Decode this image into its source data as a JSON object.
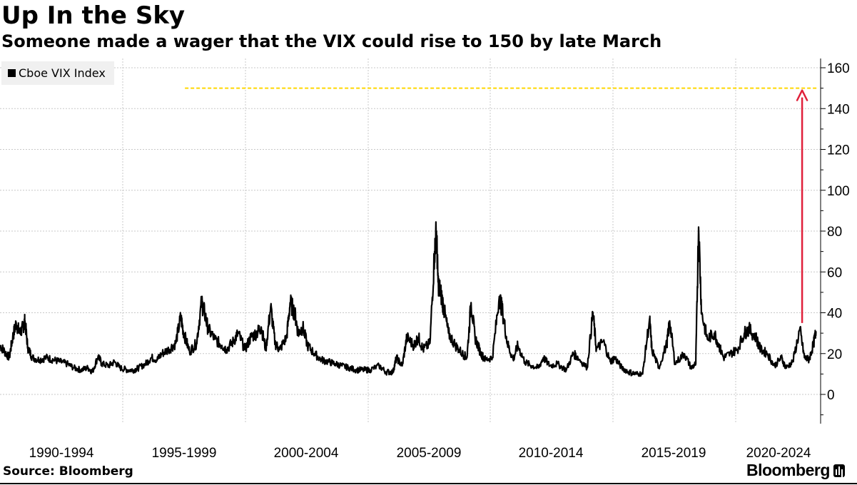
{
  "chart_data": {
    "type": "line",
    "title": "Up In the Sky",
    "subtitle": "Someone made a wager that the VIX could rise to 150 by late March",
    "source": "Source: Bloomberg",
    "brand": "Bloomberg",
    "legend": {
      "placement": "top-left"
    },
    "x_categories": [
      "1990-1994",
      "1995-1999",
      "2000-2004",
      "2005-2009",
      "2010-2014",
      "2015-2019",
      "2020-2024"
    ],
    "y_ticks": [
      0,
      20,
      40,
      60,
      80,
      100,
      120,
      140,
      160
    ],
    "ylim": [
      -15,
      165
    ],
    "xlim": [
      1990.0,
      2025.5
    ],
    "grid": true,
    "series": [
      {
        "name": "Cboe VIX Index",
        "color": "#000000",
        "points": [
          [
            1990.0,
            24
          ],
          [
            1990.2,
            21
          ],
          [
            1990.4,
            18
          ],
          [
            1990.55,
            28
          ],
          [
            1990.7,
            35
          ],
          [
            1990.85,
            30
          ],
          [
            1991.0,
            33
          ],
          [
            1991.08,
            36
          ],
          [
            1991.2,
            23
          ],
          [
            1991.4,
            18
          ],
          [
            1991.7,
            17
          ],
          [
            1992.0,
            18
          ],
          [
            1992.3,
            17
          ],
          [
            1992.6,
            16
          ],
          [
            1992.9,
            15
          ],
          [
            1993.2,
            13
          ],
          [
            1993.5,
            12
          ],
          [
            1993.8,
            13
          ],
          [
            1994.0,
            11
          ],
          [
            1994.25,
            19
          ],
          [
            1994.4,
            15
          ],
          [
            1994.7,
            14
          ],
          [
            1994.95,
            16
          ],
          [
            1995.2,
            13
          ],
          [
            1995.5,
            12
          ],
          [
            1995.8,
            12
          ],
          [
            1996.0,
            13
          ],
          [
            1996.3,
            15
          ],
          [
            1996.55,
            18
          ],
          [
            1996.8,
            17
          ],
          [
            1997.0,
            20
          ],
          [
            1997.3,
            22
          ],
          [
            1997.6,
            25
          ],
          [
            1997.82,
            38
          ],
          [
            1997.95,
            30
          ],
          [
            1998.2,
            21
          ],
          [
            1998.5,
            25
          ],
          [
            1998.72,
            45
          ],
          [
            1998.85,
            40
          ],
          [
            1999.0,
            32
          ],
          [
            1999.3,
            27
          ],
          [
            1999.6,
            24
          ],
          [
            1999.8,
            22
          ],
          [
            2000.1,
            26
          ],
          [
            2000.3,
            30
          ],
          [
            2000.6,
            22
          ],
          [
            2000.85,
            28
          ],
          [
            2001.1,
            30
          ],
          [
            2001.3,
            33
          ],
          [
            2001.5,
            22
          ],
          [
            2001.71,
            43
          ],
          [
            2001.9,
            25
          ],
          [
            2002.1,
            22
          ],
          [
            2002.4,
            28
          ],
          [
            2002.55,
            45
          ],
          [
            2002.75,
            40
          ],
          [
            2002.9,
            30
          ],
          [
            2003.1,
            33
          ],
          [
            2003.3,
            24
          ],
          [
            2003.6,
            20
          ],
          [
            2003.9,
            17
          ],
          [
            2004.2,
            16
          ],
          [
            2004.5,
            15
          ],
          [
            2004.8,
            14
          ],
          [
            2005.1,
            13
          ],
          [
            2005.4,
            12
          ],
          [
            2005.7,
            12
          ],
          [
            2006.0,
            12
          ],
          [
            2006.4,
            14
          ],
          [
            2006.7,
            11
          ],
          [
            2007.0,
            11
          ],
          [
            2007.15,
            18
          ],
          [
            2007.4,
            14
          ],
          [
            2007.6,
            28
          ],
          [
            2007.9,
            24
          ],
          [
            2008.1,
            28
          ],
          [
            2008.3,
            22
          ],
          [
            2008.6,
            25
          ],
          [
            2008.8,
            70
          ],
          [
            2008.88,
            80
          ],
          [
            2008.95,
            55
          ],
          [
            2009.1,
            48
          ],
          [
            2009.2,
            42
          ],
          [
            2009.4,
            30
          ],
          [
            2009.7,
            24
          ],
          [
            2010.0,
            20
          ],
          [
            2010.2,
            18
          ],
          [
            2010.38,
            45
          ],
          [
            2010.55,
            28
          ],
          [
            2010.8,
            20
          ],
          [
            2011.0,
            17
          ],
          [
            2011.3,
            18
          ],
          [
            2011.6,
            48
          ],
          [
            2011.75,
            40
          ],
          [
            2011.95,
            25
          ],
          [
            2012.2,
            17
          ],
          [
            2012.4,
            24
          ],
          [
            2012.7,
            16
          ],
          [
            2013.0,
            14
          ],
          [
            2013.3,
            13
          ],
          [
            2013.5,
            18
          ],
          [
            2013.8,
            14
          ],
          [
            2014.1,
            15
          ],
          [
            2014.5,
            12
          ],
          [
            2014.8,
            20
          ],
          [
            2015.0,
            18
          ],
          [
            2015.4,
            13
          ],
          [
            2015.65,
            40
          ],
          [
            2015.8,
            22
          ],
          [
            2016.1,
            26
          ],
          [
            2016.4,
            16
          ],
          [
            2016.6,
            18
          ],
          [
            2016.9,
            13
          ],
          [
            2017.2,
            11
          ],
          [
            2017.5,
            10
          ],
          [
            2017.8,
            10
          ],
          [
            2018.1,
            37
          ],
          [
            2018.2,
            22
          ],
          [
            2018.5,
            13
          ],
          [
            2018.85,
            25
          ],
          [
            2018.97,
            36
          ],
          [
            2019.2,
            15
          ],
          [
            2019.6,
            20
          ],
          [
            2019.9,
            13
          ],
          [
            2020.1,
            15
          ],
          [
            2020.22,
            82
          ],
          [
            2020.35,
            40
          ],
          [
            2020.6,
            27
          ],
          [
            2020.9,
            30
          ],
          [
            2021.1,
            24
          ],
          [
            2021.3,
            18
          ],
          [
            2021.6,
            20
          ],
          [
            2021.9,
            22
          ],
          [
            2022.2,
            30
          ],
          [
            2022.4,
            32
          ],
          [
            2022.7,
            28
          ],
          [
            2022.9,
            22
          ],
          [
            2023.2,
            20
          ],
          [
            2023.5,
            14
          ],
          [
            2023.8,
            18
          ],
          [
            2024.0,
            13
          ],
          [
            2024.3,
            16
          ],
          [
            2024.6,
            32
          ],
          [
            2024.8,
            18
          ],
          [
            2025.0,
            17
          ],
          [
            2025.2,
            25
          ],
          [
            2025.3,
            31
          ]
        ]
      }
    ],
    "annotations": [
      {
        "type": "horizontal-line",
        "y": 150,
        "x_start": 1998.0,
        "x_end": 2025.5,
        "color": "#ffd700",
        "style": "dashed"
      },
      {
        "type": "arrow",
        "x": 2024.7,
        "y_from": 35,
        "y_to": 150,
        "color": "#e0203a"
      }
    ]
  }
}
